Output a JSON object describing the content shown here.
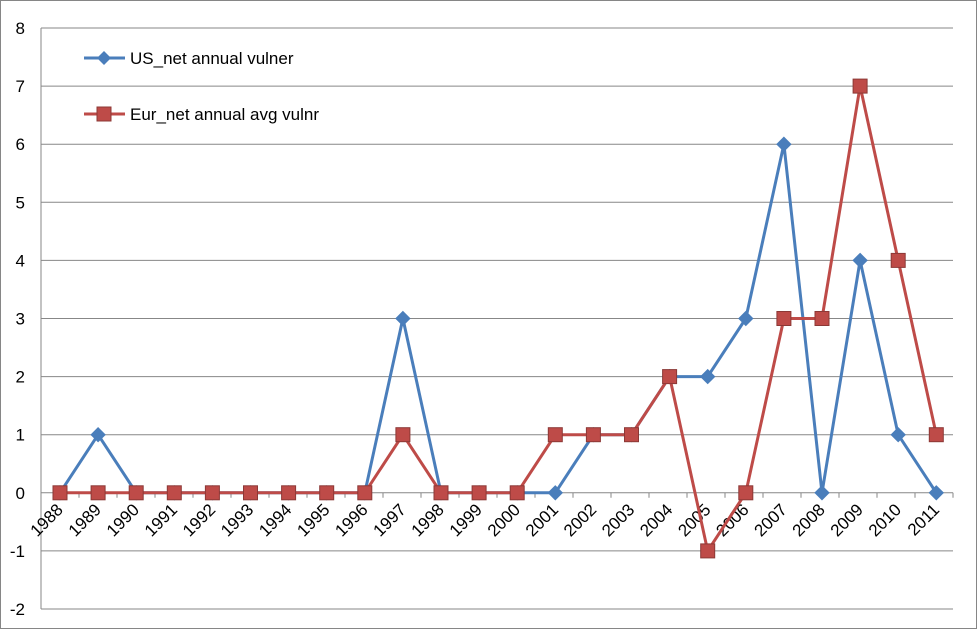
{
  "chart_data": {
    "type": "line",
    "title": "",
    "xlabel": "",
    "ylabel": "",
    "x": [
      "1988",
      "1989",
      "1990",
      "1991",
      "1992",
      "1993",
      "1994",
      "1995",
      "1996",
      "1997",
      "1998",
      "1999",
      "2000",
      "2001",
      "2002",
      "2003",
      "2004",
      "2005",
      "2006",
      "2007",
      "2008",
      "2009",
      "2010",
      "2011"
    ],
    "ylim": [
      -2,
      8
    ],
    "yticks": [
      "-2",
      "-1",
      "0",
      "1",
      "2",
      "3",
      "4",
      "5",
      "6",
      "7",
      "8"
    ],
    "grid": true,
    "legend_position": "top-left",
    "series": [
      {
        "name": "US_net annual vulner",
        "color": "#4A7EBB",
        "marker": "diamond",
        "values": [
          0,
          1,
          0,
          0,
          0,
          0,
          0,
          0,
          0,
          3,
          0,
          0,
          0,
          0,
          1,
          1,
          2,
          2,
          3,
          6,
          0,
          4,
          1,
          0
        ]
      },
      {
        "name": "Eur_net annual avg vulnr",
        "color": "#BE4B48",
        "marker": "square",
        "values": [
          0,
          0,
          0,
          0,
          0,
          0,
          0,
          0,
          0,
          1,
          0,
          0,
          0,
          1,
          1,
          1,
          2,
          -1,
          0,
          3,
          3,
          7,
          4,
          1
        ]
      }
    ]
  }
}
